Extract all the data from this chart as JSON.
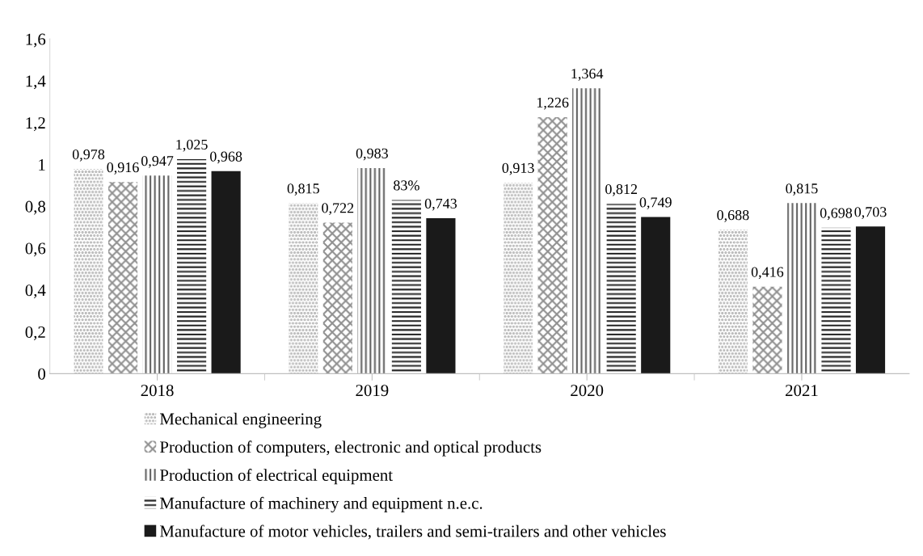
{
  "chart_data": {
    "type": "bar",
    "categories": [
      "2018",
      "2019",
      "2020",
      "2021"
    ],
    "series": [
      {
        "name": "Mechanical engineering",
        "color": "#a0a0a0",
        "values": [
          0.978,
          0.815,
          0.913,
          0.688
        ],
        "value_labels": [
          "0,978",
          "0,815",
          "0,913",
          "0,688"
        ]
      },
      {
        "name": "Production of computers, electronic and optical products",
        "color": "#909090",
        "values": [
          0.916,
          0.722,
          1.226,
          0.416
        ],
        "value_labels": [
          "0,916",
          "0,722",
          "1,226",
          "0,416"
        ]
      },
      {
        "name": "Production of electrical equipment",
        "color": "#606060",
        "values": [
          0.947,
          0.983,
          1.364,
          0.815
        ],
        "value_labels": [
          "0,947",
          "0,983",
          "1,364",
          "0,815"
        ]
      },
      {
        "name": "Manufacture of machinery and equipment n.e.c.",
        "color": "#202020",
        "values": [
          1.025,
          0.83,
          0.812,
          0.698
        ],
        "value_labels": [
          "1,025",
          "83%",
          "0,812",
          "0,698"
        ]
      },
      {
        "name": "Manufacture of motor vehicles, trailers and semi-trailers and other vehicles",
        "color": "#1a1a1a",
        "values": [
          0.968,
          0.743,
          0.749,
          0.703
        ],
        "value_labels": [
          "0,968",
          "0,743",
          "0,749",
          "0,703"
        ]
      }
    ],
    "ylim": [
      0,
      1.6
    ],
    "yticks": [
      0,
      {
        "value": 0.2,
        "label": "0,2"
      },
      {
        "value": 0.4,
        "label": "0,4"
      },
      {
        "value": 0.6,
        "label": "0,6"
      },
      {
        "value": 0.8,
        "label": "0,8"
      },
      1,
      {
        "value": 1.2,
        "label": "1,2"
      },
      {
        "value": 1.4,
        "label": "1,4"
      },
      {
        "value": 1.6,
        "label": "1,6"
      }
    ],
    "legend": "bottom",
    "grid": false
  }
}
